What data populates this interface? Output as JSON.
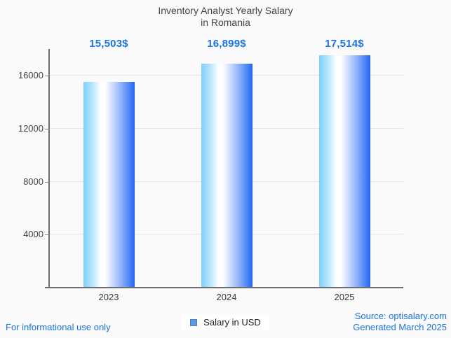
{
  "title": {
    "line1": "Inventory Analyst Yearly Salary",
    "line2": "in Romania"
  },
  "chart_data": {
    "type": "bar",
    "title": "Inventory Analyst Yearly Salary in Romania",
    "categories": [
      "2023",
      "2024",
      "2025"
    ],
    "values": [
      15503,
      16899,
      17514
    ],
    "value_labels": [
      "15,503$",
      "16,899$",
      "17,514$"
    ],
    "series_name": "Salary in USD",
    "xlabel": "",
    "ylabel": "",
    "ylim": [
      0,
      17900
    ],
    "yticks": [
      4000,
      8000,
      12000,
      16000
    ],
    "grid": true,
    "legend_position": "bottom",
    "bar_gradient": [
      "#7ecffc",
      "#ffffff",
      "#2164f1"
    ]
  },
  "legend": {
    "label": "Salary in USD",
    "swatch_color": "#5d9ce4"
  },
  "footer": {
    "disclaimer": "For informational use only",
    "source": "Source: optisalary.com",
    "generated": "Generated March 2025"
  },
  "colors": {
    "background": "#fafafa",
    "accent_blue": "#1a73e8",
    "title_text": "#424242",
    "axis_text": "#444444",
    "gridline": "#e6e6e6",
    "axis_line": "#6e6e6e"
  }
}
